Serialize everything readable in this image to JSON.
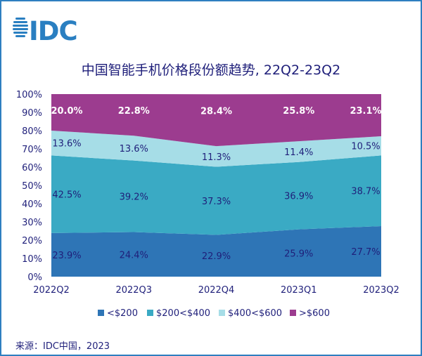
{
  "logo": {
    "text": "IDC",
    "color": "#2a7fc1"
  },
  "source": "来源：IDC中国，2023",
  "chart_data": {
    "type": "area",
    "stacked": true,
    "title": "中国智能手机价格段份额趋势, 22Q2-23Q2",
    "xlabel": "",
    "ylabel": "",
    "categories": [
      "2022Q2",
      "2022Q3",
      "2022Q4",
      "2023Q1",
      "2023Q2"
    ],
    "ylim": [
      0,
      100
    ],
    "yticks": [
      "0%",
      "10%",
      "20%",
      "30%",
      "40%",
      "50%",
      "60%",
      "70%",
      "80%",
      "90%",
      "100%"
    ],
    "grid": false,
    "legend_position": "bottom",
    "series": [
      {
        "name": "<$200",
        "color": "#2e75b6",
        "values": [
          23.9,
          24.4,
          22.9,
          25.9,
          27.7
        ],
        "labels": [
          "23.9%",
          "24.4%",
          "22.9%",
          "25.9%",
          "27.7%"
        ]
      },
      {
        "name": "$200<$400",
        "color": "#3aaac4",
        "values": [
          42.5,
          39.2,
          37.3,
          36.9,
          38.7
        ],
        "labels": [
          "42.5%",
          "39.2%",
          "37.3%",
          "36.9%",
          "38.7%"
        ]
      },
      {
        "name": "$400<$600",
        "color": "#a6dde7",
        "values": [
          13.6,
          13.6,
          11.3,
          11.4,
          10.5
        ],
        "labels": [
          "13.6%",
          "13.6%",
          "11.3%",
          "11.4%",
          "10.5%"
        ]
      },
      {
        "name": ">$600",
        "color": "#9c3c8f",
        "values": [
          20.0,
          22.8,
          28.4,
          25.8,
          23.1
        ],
        "labels": [
          "20.0%",
          "22.8%",
          "28.4%",
          "25.8%",
          "23.1%"
        ]
      }
    ]
  }
}
